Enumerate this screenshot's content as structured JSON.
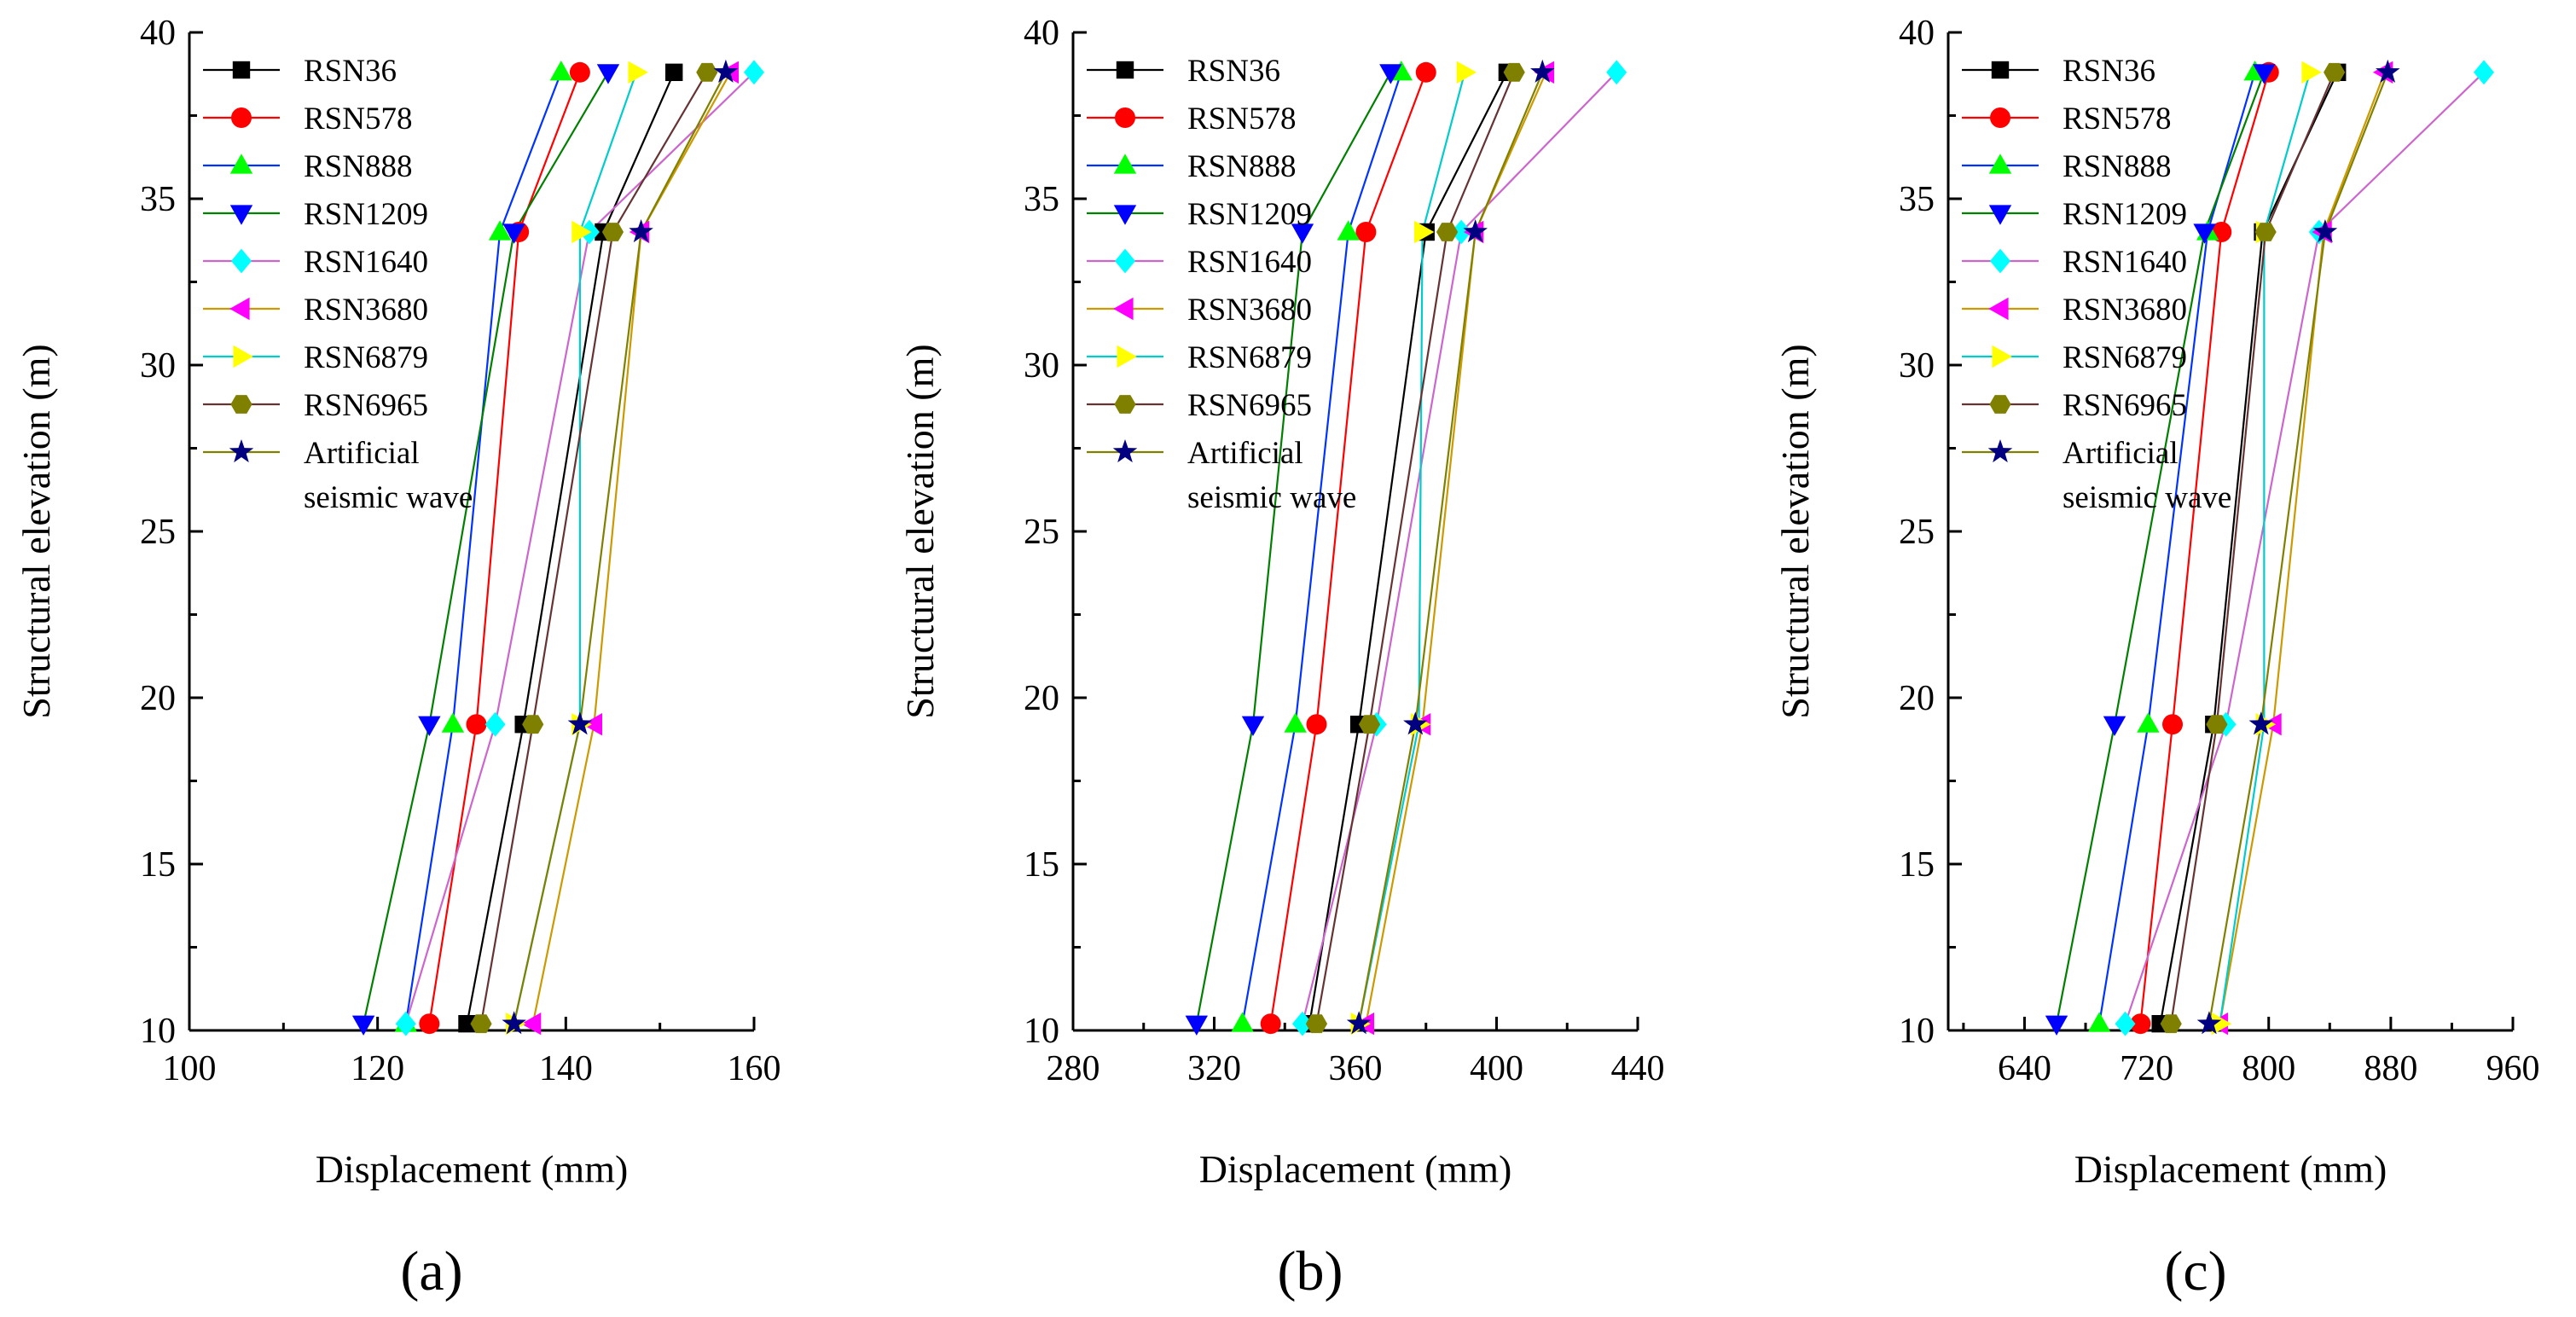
{
  "styles": [
    {
      "name": "RSN36",
      "color": "#000000",
      "marker": "square"
    },
    {
      "name": "RSN578",
      "color": "#ff0000",
      "marker": "circle"
    },
    {
      "name": "RSN888",
      "color": "#00ff00",
      "marker": "triangle-up"
    },
    {
      "name": "RSN1209",
      "color": "#0000ff",
      "marker": "triangle-down"
    },
    {
      "name": "RSN1640",
      "color": "#00ffff",
      "marker": "diamond"
    },
    {
      "name": "RSN3680",
      "color": "#ff00ff",
      "marker": "triangle-left"
    },
    {
      "name": "RSN6879",
      "color": "#ffff00",
      "marker": "triangle-right"
    },
    {
      "name": "RSN6965",
      "color": "#808000",
      "marker": "hexagon"
    },
    {
      "name": "Artificial seismic wave",
      "color": "#000080",
      "marker": "star"
    }
  ],
  "line_colors": [
    "#000000",
    "#ff0000",
    "#0033ff",
    "#008000",
    "#cc66cc",
    "#cc9900",
    "#00cccc",
    "#663333",
    "#808000"
  ],
  "legend_lines": [
    [
      "RSN36"
    ],
    [
      "RSN578"
    ],
    [
      "RSN888"
    ],
    [
      "RSN1209"
    ],
    [
      "RSN1640"
    ],
    [
      "RSN3680"
    ],
    [
      "RSN6879"
    ],
    [
      "RSN6965"
    ],
    [
      "Artificial",
      "seismic wave"
    ]
  ],
  "chart_data": [
    {
      "type": "line",
      "panel_label": "(a)",
      "xlabel": "Displacement (mm)",
      "ylabel": "Structural elevation (m)",
      "xlim": [
        100,
        160
      ],
      "ylim": [
        10,
        40
      ],
      "xticks": [
        100,
        120,
        140,
        160
      ],
      "yticks": [
        10,
        15,
        20,
        25,
        30,
        35,
        40
      ],
      "y": [
        10.2,
        19.2,
        34.0,
        38.8
      ],
      "series": [
        {
          "name": "RSN36",
          "values": [
            129.5,
            135.5,
            144.0,
            151.5
          ]
        },
        {
          "name": "RSN578",
          "values": [
            125.5,
            130.5,
            135.0,
            141.5
          ]
        },
        {
          "name": "RSN888",
          "values": [
            123.0,
            128.0,
            133.0,
            139.5
          ]
        },
        {
          "name": "RSN1209",
          "values": [
            118.5,
            125.5,
            134.5,
            144.5
          ]
        },
        {
          "name": "RSN1640",
          "values": [
            123.0,
            132.5,
            142.5,
            160.0
          ]
        },
        {
          "name": "RSN3680",
          "values": [
            136.5,
            143.0,
            148.0,
            157.5
          ]
        },
        {
          "name": "RSN6879",
          "values": [
            134.5,
            141.5,
            141.5,
            147.5
          ]
        },
        {
          "name": "RSN6965",
          "values": [
            131.0,
            136.5,
            145.0,
            155.0
          ]
        },
        {
          "name": "Artificial seismic wave",
          "values": [
            134.5,
            141.5,
            148.0,
            157.0
          ]
        }
      ]
    },
    {
      "type": "line",
      "panel_label": "(b)",
      "xlabel": "Displacement (mm)",
      "ylabel": "Structural elevation (m)",
      "xlim": [
        280,
        440
      ],
      "ylim": [
        10,
        40
      ],
      "xticks": [
        280,
        320,
        360,
        400,
        440
      ],
      "yticks": [
        10,
        15,
        20,
        25,
        30,
        35,
        40
      ],
      "y": [
        10.2,
        19.2,
        34.0,
        38.8
      ],
      "series": [
        {
          "name": "RSN36",
          "values": [
            347,
            361,
            380,
            403
          ]
        },
        {
          "name": "RSN578",
          "values": [
            336,
            349,
            363,
            380
          ]
        },
        {
          "name": "RSN888",
          "values": [
            328,
            343,
            358,
            373
          ]
        },
        {
          "name": "RSN1209",
          "values": [
            315,
            331,
            345,
            370
          ]
        },
        {
          "name": "RSN1640",
          "values": [
            345,
            366,
            390,
            434
          ]
        },
        {
          "name": "RSN3680",
          "values": [
            363,
            379,
            394,
            414
          ]
        },
        {
          "name": "RSN6879",
          "values": [
            361,
            378,
            379,
            391
          ]
        },
        {
          "name": "RSN6965",
          "values": [
            349,
            364,
            386,
            405
          ]
        },
        {
          "name": "Artificial seismic wave",
          "values": [
            361,
            377,
            394,
            413
          ]
        }
      ]
    },
    {
      "type": "line",
      "panel_label": "(c)",
      "xlabel": "Displacement (mm)",
      "ylabel": "Structural elevation (m)",
      "xlim": [
        590,
        960
      ],
      "ylim": [
        10,
        40
      ],
      "xticks": [
        640,
        720,
        800,
        880,
        960
      ],
      "yticks": [
        10,
        15,
        20,
        25,
        30,
        35,
        40
      ],
      "y": [
        10.2,
        19.2,
        34.0,
        38.8
      ],
      "series": [
        {
          "name": "RSN36",
          "values": [
            729,
            764,
            796,
            845
          ]
        },
        {
          "name": "RSN578",
          "values": [
            716,
            737,
            769,
            800
          ]
        },
        {
          "name": "RSN888",
          "values": [
            689,
            721,
            760,
            791
          ]
        },
        {
          "name": "RSN1209",
          "values": [
            661,
            699,
            758,
            797
          ]
        },
        {
          "name": "RSN1640",
          "values": [
            706,
            772,
            833,
            941
          ]
        },
        {
          "name": "RSN3680",
          "values": [
            768,
            803,
            836,
            876
          ]
        },
        {
          "name": "RSN6879",
          "values": [
            768,
            797,
            797,
            827
          ]
        },
        {
          "name": "RSN6965",
          "values": [
            736,
            766,
            798,
            843
          ]
        },
        {
          "name": "Artificial seismic wave",
          "values": [
            761,
            795,
            837,
            878
          ]
        }
      ]
    }
  ]
}
